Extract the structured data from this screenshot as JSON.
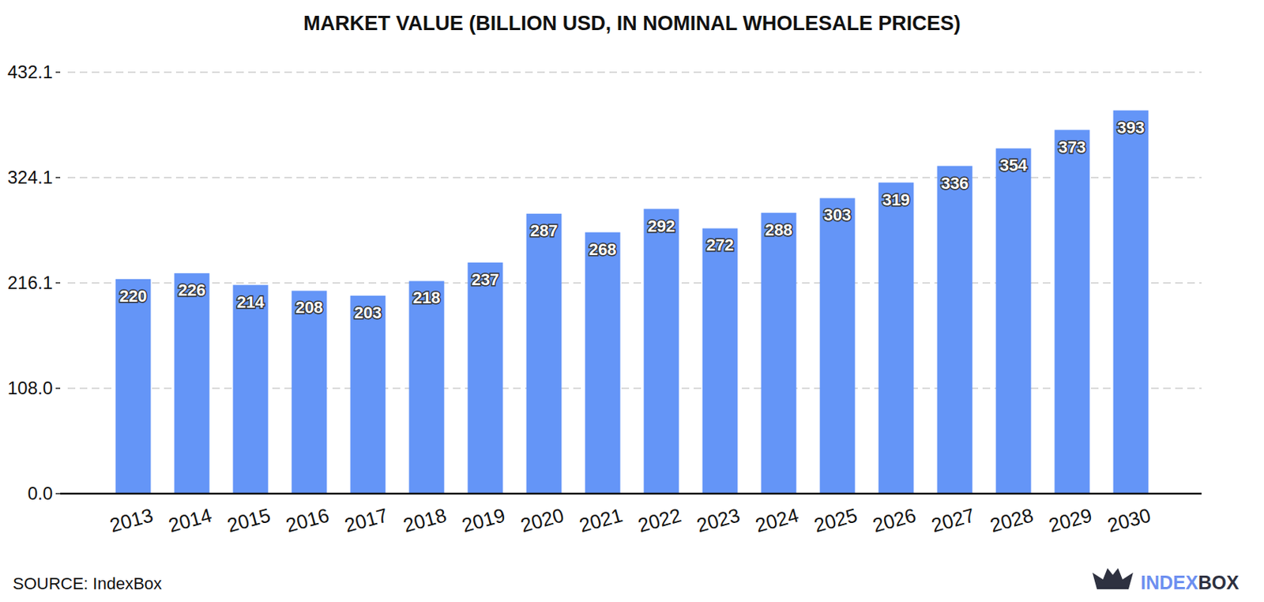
{
  "chart_data": {
    "type": "bar",
    "title": "MARKET VALUE (BILLION USD, IN NOMINAL WHOLESALE PRICES)",
    "categories": [
      "2013",
      "2014",
      "2015",
      "2016",
      "2017",
      "2018",
      "2019",
      "2020",
      "2021",
      "2022",
      "2023",
      "2024",
      "2025",
      "2026",
      "2027",
      "2028",
      "2029",
      "2030"
    ],
    "values": [
      220,
      226,
      214,
      208,
      203,
      218,
      237,
      287,
      268,
      292,
      272,
      288,
      303,
      319,
      336,
      354,
      373,
      393
    ],
    "color": "#6495f7",
    "ylim": [
      0,
      432.1
    ],
    "yticks": [
      {
        "value": 0,
        "label": "0.0"
      },
      {
        "value": 108,
        "label": "108.0"
      },
      216.1,
      324.1,
      432.1
    ],
    "grid": true,
    "data_labels": true,
    "source": "SOURCE: IndexBox",
    "logo": [
      "INDEX",
      "BOX"
    ]
  }
}
